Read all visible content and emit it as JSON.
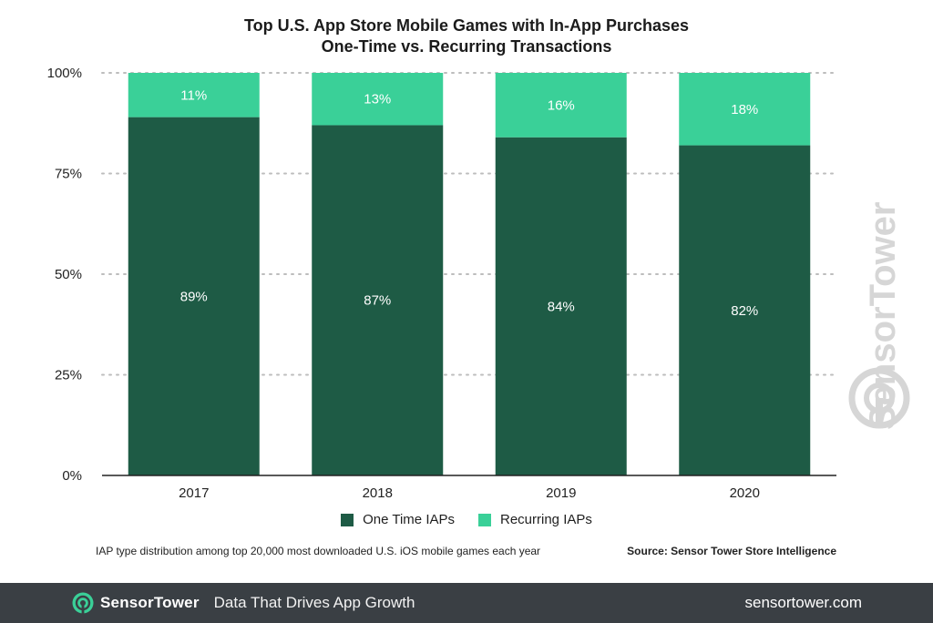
{
  "colors": {
    "one_time": "#1e5b45",
    "recurring": "#3ad098",
    "grid": "#bdbdbd",
    "footer_bg": "#3a3f44",
    "watermark": "#d6d6d6"
  },
  "header": {
    "title_line1": "Top U.S. App Store Mobile Games with In-App Purchases",
    "title_line2": "One-Time vs. Recurring Transactions"
  },
  "chart_data": {
    "type": "bar",
    "stacked": true,
    "categories": [
      "2017",
      "2018",
      "2019",
      "2020"
    ],
    "series": [
      {
        "name": "One Time IAPs",
        "values": [
          89,
          87,
          84,
          82
        ],
        "labels": [
          "89%",
          "87%",
          "84%",
          "82%"
        ],
        "color": "#1e5b45"
      },
      {
        "name": "Recurring IAPs",
        "values": [
          11,
          13,
          16,
          18
        ],
        "labels": [
          "11%",
          "13%",
          "16%",
          "18%"
        ],
        "color": "#3ad098"
      }
    ],
    "ylim": [
      0,
      100
    ],
    "yticks": [
      {
        "value": 0,
        "label": "0%"
      },
      {
        "value": 25,
        "label": "25%"
      },
      {
        "value": 50,
        "label": "50%"
      },
      {
        "value": 75,
        "label": "75%"
      },
      {
        "value": 100,
        "label": "100%"
      }
    ],
    "grid": true,
    "legend_position": "bottom-center"
  },
  "legend": {
    "one_time_label": "One Time IAPs",
    "recurring_label": "Recurring IAPs"
  },
  "notes": {
    "description": "IAP type distribution among top 20,000 most downloaded U.S. iOS mobile games each year",
    "source": "Source: Sensor Tower Store Intelligence"
  },
  "footer": {
    "brand_part1": "Sensor",
    "brand_part2": "Tower",
    "tagline": "Data That Drives App Growth",
    "website": "sensortower.com",
    "logo_icon": "sensortower-logo-icon"
  },
  "watermark": {
    "text": "SensorTower",
    "icon": "sensortower-logo-icon"
  }
}
